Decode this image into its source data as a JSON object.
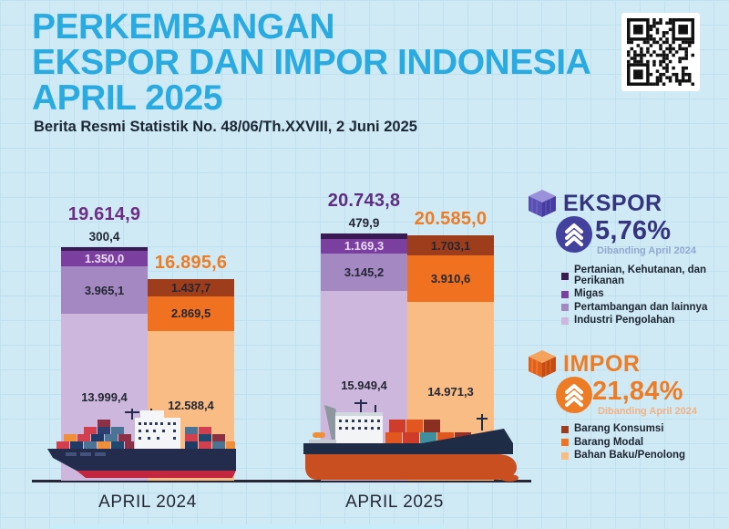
{
  "header": {
    "title_line1": "PERKEMBANGAN",
    "title_line2": "EKSPOR DAN IMPOR INDONESIA",
    "title_line3": "APRIL 2025",
    "subtitle": "Berita Resmi Statistik No. 48/06/Th.XXVIII, 2 Juni 2025",
    "title_color": "#29abe2"
  },
  "chart_data": {
    "type": "bar",
    "stacked": true,
    "categories": [
      "APRIL 2024",
      "APRIL 2025"
    ],
    "ylim": [
      0,
      20743.8
    ],
    "grid": false,
    "legend_position": "right",
    "groups": [
      {
        "category": "APRIL 2024",
        "bars": [
          {
            "series": "EKSPOR",
            "total": 19614.9,
            "total_label": "19.614,9",
            "total_color": "#6e2d83",
            "segments": [
              {
                "name": "Pertanian, Kehutanan, dan Perikanan",
                "value": 300.4,
                "label": "300,4",
                "color": "#3a1a52",
                "label_outside": true
              },
              {
                "name": "Migas",
                "value": 1350.0,
                "label": "1.350,0",
                "color": "#7b3fa0",
                "label_color": "#e9dcf4"
              },
              {
                "name": "Pertambangan dan lainnya",
                "value": 3965.1,
                "label": "3.965,1",
                "color": "#a488c2"
              },
              {
                "name": "Industri Pengolahan",
                "value": 13999.4,
                "label": "13.999,4",
                "color": "#cdb7dd"
              }
            ]
          },
          {
            "series": "IMPOR",
            "total": 16895.6,
            "total_label": "16.895,6",
            "total_color": "#ee7c24",
            "segments": [
              {
                "name": "Barang Konsumsi",
                "value": 1437.7,
                "label": "1.437,7",
                "color": "#9d3d1c"
              },
              {
                "name": "Barang Modal",
                "value": 2869.5,
                "label": "2.869,5",
                "color": "#f0711f"
              },
              {
                "name": "Bahan Baku/Penolong",
                "value": 12588.4,
                "label": "12.588,4",
                "color": "#f9bc85"
              }
            ]
          }
        ]
      },
      {
        "category": "APRIL 2025",
        "bars": [
          {
            "series": "EKSPOR",
            "total": 20743.8,
            "total_label": "20.743,8",
            "total_color": "#5e2d80",
            "segments": [
              {
                "name": "Pertanian, Kehutanan, dan Perikanan",
                "value": 479.9,
                "label": "479,9",
                "color": "#3a1a52",
                "label_outside": true
              },
              {
                "name": "Migas",
                "value": 1169.3,
                "label": "1.169,3",
                "color": "#7b3fa0",
                "label_color": "#e9dcf4"
              },
              {
                "name": "Pertambangan dan lainnya",
                "value": 3145.2,
                "label": "3.145,2",
                "color": "#a488c2"
              },
              {
                "name": "Industri Pengolahan",
                "value": 15949.4,
                "label": "15.949,4",
                "color": "#cdb7dd"
              }
            ]
          },
          {
            "series": "IMPOR",
            "total": 20585.0,
            "total_label": "20.585,0",
            "total_color": "#ee7c24",
            "segments": [
              {
                "name": "Barang Konsumsi",
                "value": 1703.1,
                "label": "1.703,1",
                "color": "#9d3d1c"
              },
              {
                "name": "Barang Modal",
                "value": 3910.6,
                "label": "3.910,6",
                "color": "#f0711f"
              },
              {
                "name": "Bahan Baku/Penolong",
                "value": 14971.3,
                "label": "14.971,3",
                "color": "#f9bc85"
              }
            ]
          }
        ]
      }
    ]
  },
  "ekspor_panel": {
    "title": "EKSPOR",
    "change_percent": "5,76%",
    "note": "Dibanding April 2024",
    "accent": "#34347f",
    "note_color": "#92a9cf",
    "legend": [
      {
        "label": "Pertanian, Kehutanan, dan Perikanan",
        "color": "#3a1a52"
      },
      {
        "label": "Migas",
        "color": "#7b3fa0"
      },
      {
        "label": "Pertambangan dan lainnya",
        "color": "#a488c2"
      },
      {
        "label": "Industri Pengolahan",
        "color": "#cdb7dd"
      }
    ]
  },
  "impor_panel": {
    "title": "IMPOR",
    "change_percent": "21,84%",
    "note": "Dibanding April 2024",
    "accent": "#ee7c24",
    "note_color": "#f2b285",
    "legend": [
      {
        "label": "Barang Konsumsi",
        "color": "#9d3d1c"
      },
      {
        "label": "Barang Modal",
        "color": "#f0711f"
      },
      {
        "label": "Bahan Baku/Penolong",
        "color": "#f9bc85"
      }
    ]
  }
}
